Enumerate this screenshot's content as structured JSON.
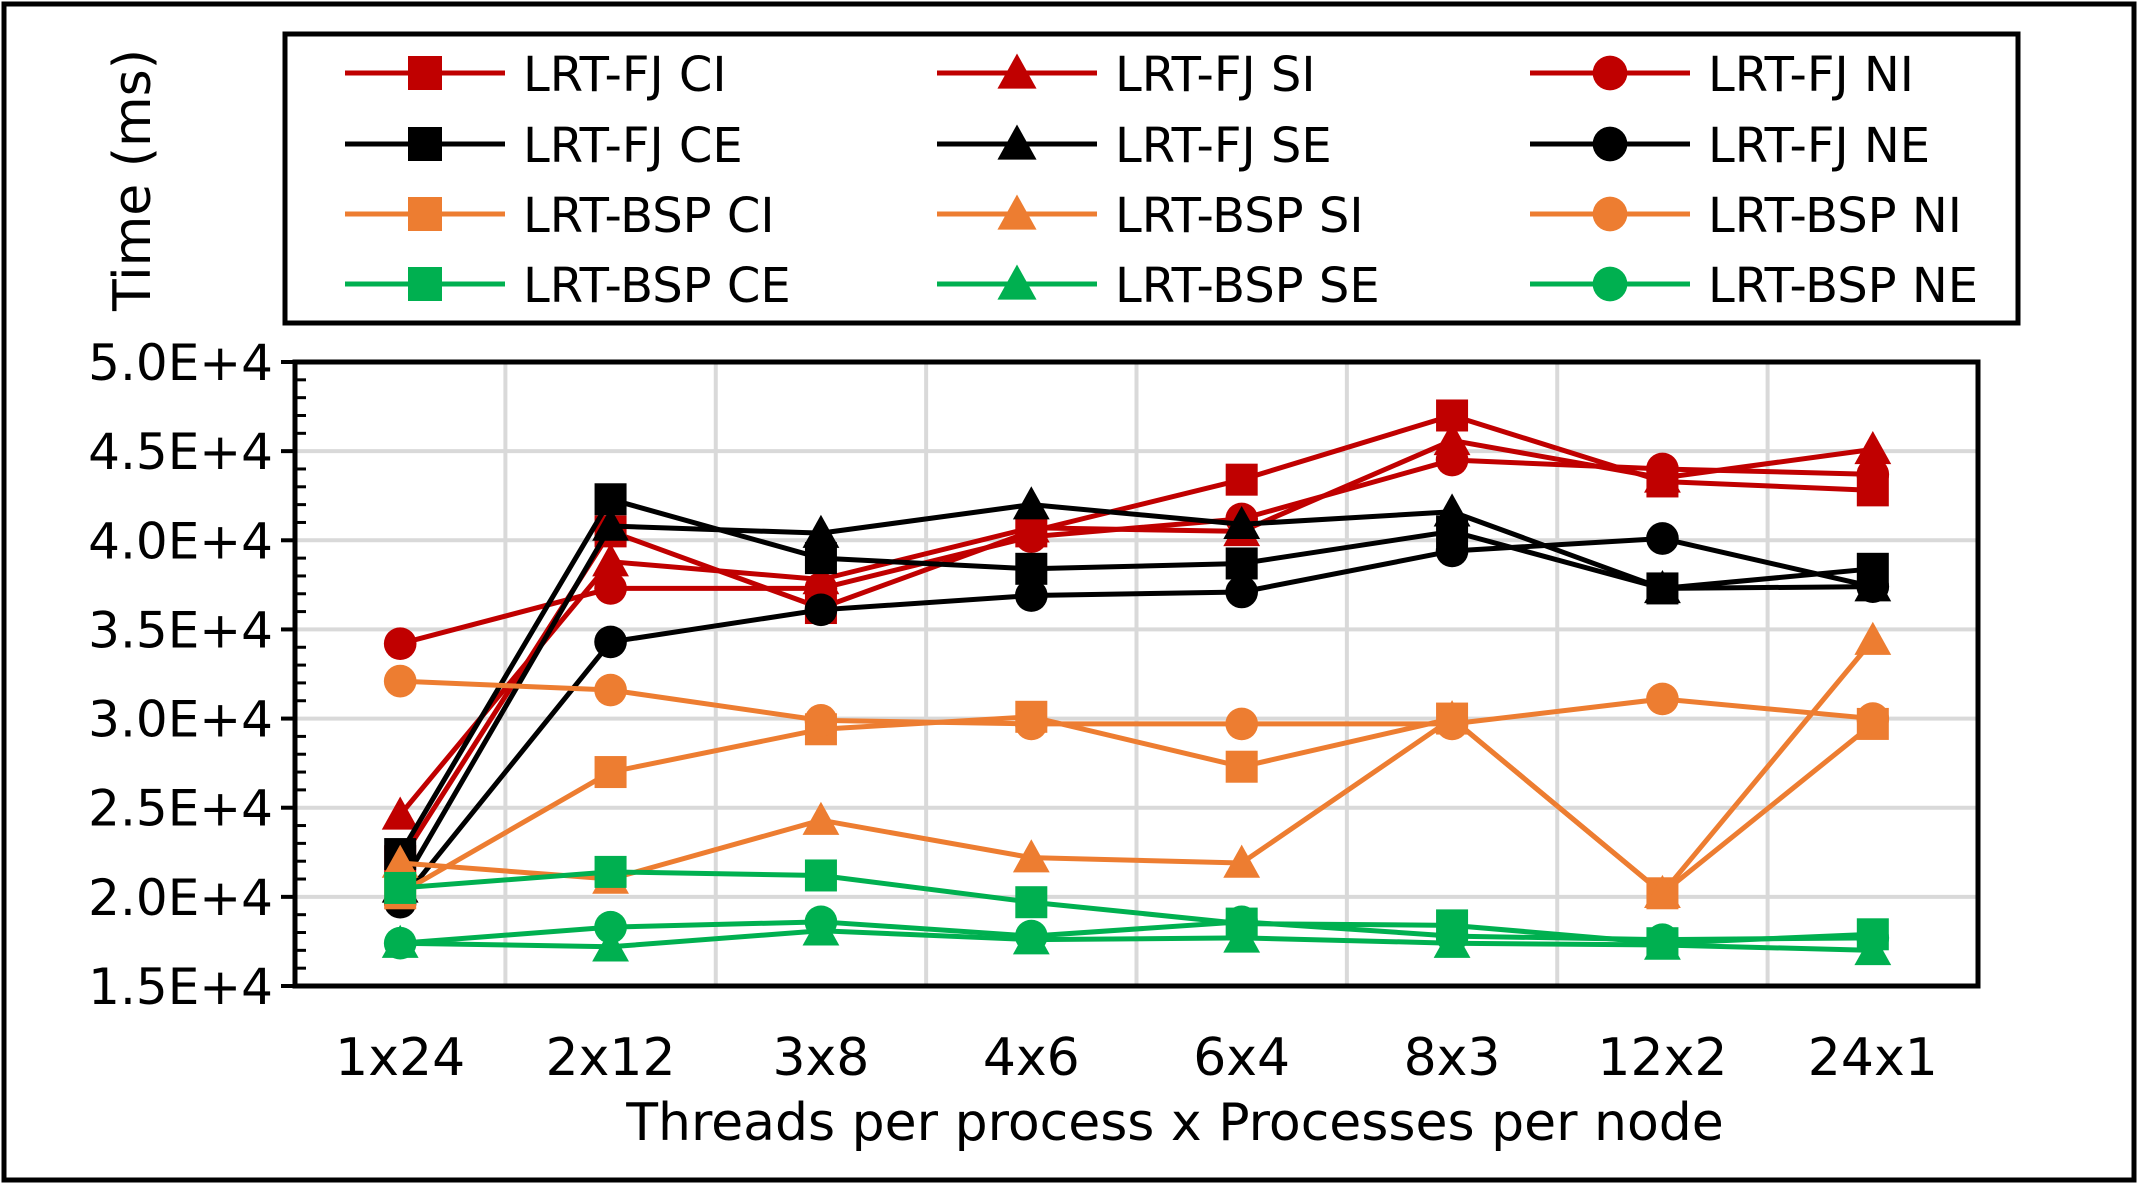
{
  "chart_data": {
    "type": "line",
    "title": "",
    "xlabel": "Threads per process x Processes per node",
    "ylabel": "Time (ms)",
    "ylim": [
      15000,
      50000
    ],
    "yticks": [
      15000,
      20000,
      25000,
      30000,
      35000,
      40000,
      45000,
      50000
    ],
    "ytick_labels": [
      "1.5E+4",
      "2.0E+4",
      "2.5E+4",
      "3.0E+4",
      "3.5E+4",
      "4.0E+4",
      "4.5E+4",
      "5.0E+4"
    ],
    "categories": [
      "1x24",
      "2x12",
      "3x8",
      "4x6",
      "6x4",
      "8x3",
      "12x2",
      "24x1"
    ],
    "grid": true,
    "legend_position": "top",
    "series": [
      {
        "name": "LRT-FJ CI",
        "color": "#c00000",
        "marker": "square",
        "values": [
          22000,
          40500,
          36200,
          40500,
          43400,
          47000,
          43300,
          42800
        ]
      },
      {
        "name": "LRT-FJ SI",
        "color": "#c00000",
        "marker": "triangle",
        "values": [
          24600,
          38800,
          37800,
          40700,
          40500,
          45600,
          43500,
          45100
        ]
      },
      {
        "name": "LRT-FJ NI",
        "color": "#c00000",
        "marker": "circle",
        "values": [
          34200,
          37300,
          37300,
          40200,
          41200,
          44500,
          44000,
          43700
        ]
      },
      {
        "name": "LRT-FJ CE",
        "color": "#000000",
        "marker": "square",
        "values": [
          22400,
          42300,
          39000,
          38400,
          38700,
          40500,
          37300,
          38400
        ]
      },
      {
        "name": "LRT-FJ SE",
        "color": "#000000",
        "marker": "triangle",
        "values": [
          20500,
          40800,
          40400,
          42000,
          40900,
          41600,
          37300,
          37400
        ]
      },
      {
        "name": "LRT-FJ NE",
        "color": "#000000",
        "marker": "circle",
        "values": [
          19700,
          34300,
          36100,
          36900,
          37100,
          39400,
          40100,
          37400
        ]
      },
      {
        "name": "LRT-BSP CI",
        "color": "#ed7d31",
        "marker": "square",
        "values": [
          20200,
          27000,
          29400,
          30100,
          27300,
          30000,
          20200,
          29700
        ]
      },
      {
        "name": "LRT-BSP SI",
        "color": "#ed7d31",
        "marker": "triangle",
        "values": [
          21900,
          21000,
          24300,
          22200,
          21900,
          30000,
          20200,
          34400
        ]
      },
      {
        "name": "LRT-BSP NI",
        "color": "#ed7d31",
        "marker": "circle",
        "values": [
          32100,
          31600,
          29900,
          29700,
          29700,
          29700,
          31100,
          30000
        ]
      },
      {
        "name": "LRT-BSP CE",
        "color": "#00b050",
        "marker": "square",
        "values": [
          20500,
          21400,
          21200,
          19700,
          18500,
          18400,
          17400,
          17900
        ]
      },
      {
        "name": "LRT-BSP SE",
        "color": "#00b050",
        "marker": "triangle",
        "values": [
          17400,
          17200,
          18100,
          17600,
          17700,
          17400,
          17300,
          17000
        ]
      },
      {
        "name": "LRT-BSP NE",
        "color": "#00b050",
        "marker": "circle",
        "values": [
          17400,
          18300,
          18600,
          17800,
          18600,
          17800,
          17600,
          17700
        ]
      }
    ]
  }
}
